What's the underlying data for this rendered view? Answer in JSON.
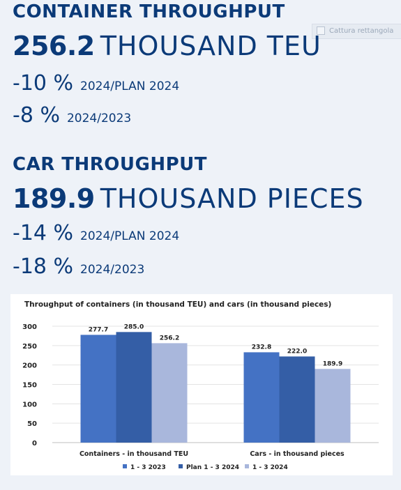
{
  "watermark": {
    "label": "Cattura rettangola",
    "icon": "image-icon"
  },
  "container": {
    "heading": "CONTAINER THROUGHPUT",
    "value": "256.2",
    "unit": "THOUSAND TEU",
    "delta_plan_pct": "-10 %",
    "delta_plan_label": "2024/PLAN 2024",
    "delta_prev_pct": "-8 %",
    "delta_prev_label": "2024/2023"
  },
  "car": {
    "heading": "CAR THROUGHPUT",
    "value": "189.9",
    "unit": "THOUSAND PIECES",
    "delta_plan_pct": "-14 %",
    "delta_plan_label": "2024/PLAN 2024",
    "delta_prev_pct": "-18 %",
    "delta_prev_label": "2024/2023"
  },
  "chart_data": {
    "type": "bar",
    "title": "Throughput of containers (in thousand TEU) and cars (in thousand pieces)",
    "categories": [
      "Containers - in thousand TEU",
      "Cars - in thousand pieces"
    ],
    "series": [
      {
        "name": "1 - 3 2023",
        "values": [
          277.7,
          232.8
        ],
        "labels": [
          "277.7",
          "232.8"
        ],
        "color": "#4472c4"
      },
      {
        "name": "Plan 1 - 3 2024",
        "values": [
          285.0,
          222.0
        ],
        "labels": [
          "285.0",
          "222.0"
        ],
        "color": "#345ea6"
      },
      {
        "name": "1 - 3 2024",
        "values": [
          256.2,
          189.9
        ],
        "labels": [
          "256.2",
          "189.9"
        ],
        "color": "#a9b7dc"
      }
    ],
    "ylim": [
      0,
      300
    ],
    "yticks": [
      0,
      50,
      100,
      150,
      200,
      250,
      300
    ],
    "grid": true,
    "legend_position": "bottom"
  }
}
